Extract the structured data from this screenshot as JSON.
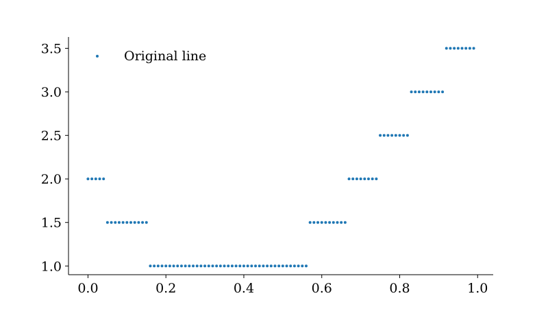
{
  "chart_data": {
    "type": "scatter",
    "title": "",
    "xlabel": "",
    "ylabel": "",
    "xlim": [
      -0.05,
      1.04
    ],
    "ylim": [
      0.9,
      3.63
    ],
    "xticks": [
      0.0,
      0.2,
      0.4,
      0.6,
      0.8,
      1.0
    ],
    "xtick_labels": [
      "0.0",
      "0.2",
      "0.4",
      "0.6",
      "0.8",
      "1.0"
    ],
    "yticks": [
      1.0,
      1.5,
      2.0,
      2.5,
      3.0,
      3.5
    ],
    "ytick_labels": [
      "1.0",
      "1.5",
      "2.0",
      "2.5",
      "3.0",
      "3.5"
    ],
    "grid": false,
    "legend": {
      "position": "upper-left",
      "entries": [
        "Original line"
      ]
    },
    "series": [
      {
        "name": "Original line",
        "color": "#1f77b4",
        "marker": "dot",
        "segments": [
          {
            "x_start": 0.0,
            "x_end": 0.04,
            "y": 2.0
          },
          {
            "x_start": 0.05,
            "x_end": 0.15,
            "y": 1.5
          },
          {
            "x_start": 0.16,
            "x_end": 0.56,
            "y": 1.0
          },
          {
            "x_start": 0.57,
            "x_end": 0.66,
            "y": 1.5
          },
          {
            "x_start": 0.67,
            "x_end": 0.74,
            "y": 2.0
          },
          {
            "x_start": 0.75,
            "x_end": 0.82,
            "y": 2.5
          },
          {
            "x_start": 0.83,
            "x_end": 0.91,
            "y": 3.0
          },
          {
            "x_start": 0.92,
            "x_end": 0.99,
            "y": 3.5
          }
        ],
        "x_step": 0.01
      }
    ]
  }
}
